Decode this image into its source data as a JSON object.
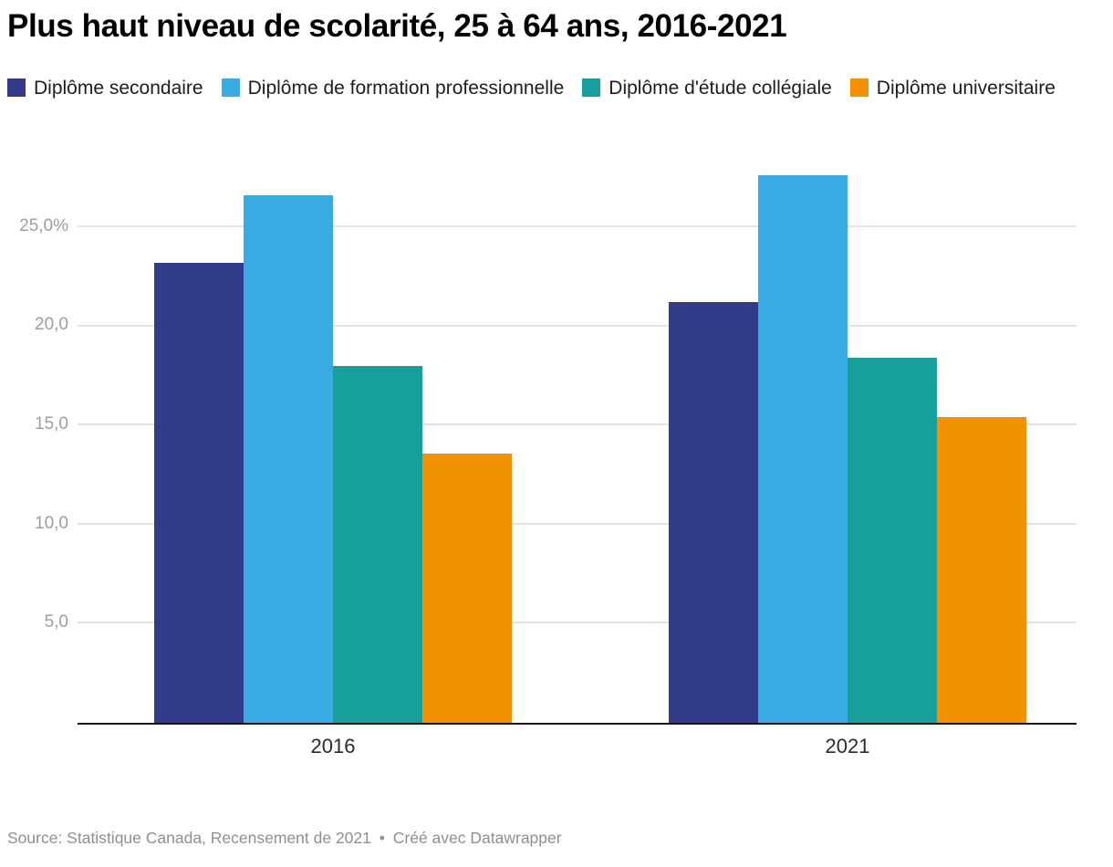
{
  "chart_data": {
    "type": "bar",
    "title": "Plus haut niveau de scolarité, 25 à 64 ans, 2016-2021",
    "categories": [
      "2016",
      "2021"
    ],
    "series": [
      {
        "name": "Diplôme secondaire",
        "color": "#323b8a",
        "values": [
          23.2,
          21.2
        ]
      },
      {
        "name": "Diplôme de formation professionnelle",
        "color": "#3aabe2",
        "values": [
          26.6,
          27.6
        ]
      },
      {
        "name": "Diplôme d'étude collégiale",
        "color": "#17a09b",
        "values": [
          18.0,
          18.4
        ]
      },
      {
        "name": "Diplôme universitaire",
        "color": "#f29200",
        "values": [
          13.6,
          15.4
        ]
      }
    ],
    "ylim": [
      0,
      28.4
    ],
    "yticks": [
      {
        "value": 5,
        "label": "5,0"
      },
      {
        "value": 10,
        "label": "10,0"
      },
      {
        "value": 15,
        "label": "15,0"
      },
      {
        "value": 20,
        "label": "20,0"
      },
      {
        "value": 25,
        "label": "25,0%"
      }
    ],
    "grid": "horizontal",
    "legend_position": "top",
    "unit": "%"
  },
  "footer": {
    "source": "Source: Statistique Canada, Recensement de 2021",
    "separator": "•",
    "attribution": "Créé avec Datawrapper"
  }
}
